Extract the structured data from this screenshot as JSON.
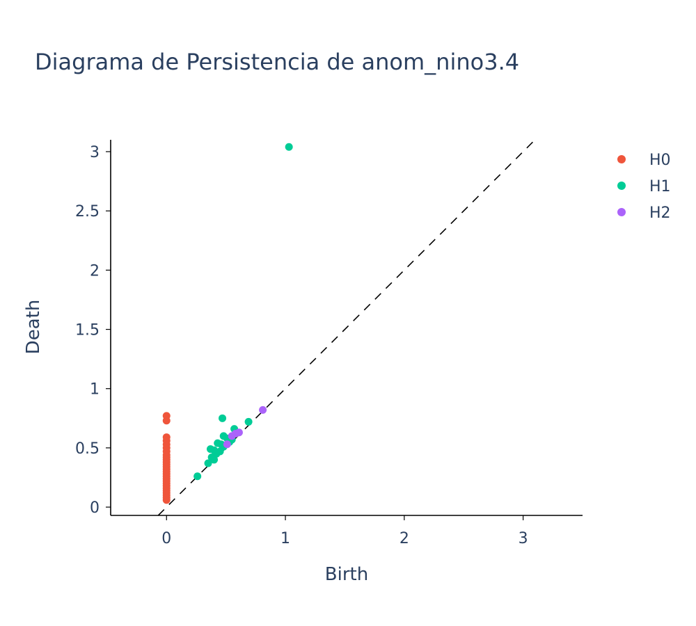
{
  "chart_data": {
    "type": "scatter",
    "title": "Diagrama de Persistencia de anom_nino3.4",
    "xlabel": "Birth",
    "ylabel": "Death",
    "xlim": [
      -0.47,
      3.5
    ],
    "ylim": [
      -0.07,
      3.1
    ],
    "x_ticks": [
      0,
      1,
      2,
      3
    ],
    "y_ticks": [
      0,
      0.5,
      1,
      1.5,
      2,
      2.5,
      3
    ],
    "grid": false,
    "legend_position": "top-right",
    "diagonal": {
      "style": "dashed",
      "color": "#000000"
    },
    "series": [
      {
        "name": "H0",
        "color": "#EF553B",
        "points": [
          [
            0,
            0.06
          ],
          [
            0,
            0.08
          ],
          [
            0,
            0.1
          ],
          [
            0,
            0.12
          ],
          [
            0,
            0.14
          ],
          [
            0,
            0.16
          ],
          [
            0,
            0.18
          ],
          [
            0,
            0.2
          ],
          [
            0,
            0.22
          ],
          [
            0,
            0.24
          ],
          [
            0,
            0.26
          ],
          [
            0,
            0.28
          ],
          [
            0,
            0.3
          ],
          [
            0,
            0.32
          ],
          [
            0,
            0.34
          ],
          [
            0,
            0.36
          ],
          [
            0,
            0.38
          ],
          [
            0,
            0.4
          ],
          [
            0,
            0.42
          ],
          [
            0,
            0.44
          ],
          [
            0,
            0.47
          ],
          [
            0,
            0.5
          ],
          [
            0,
            0.53
          ],
          [
            0,
            0.56
          ],
          [
            0,
            0.59
          ],
          [
            0,
            0.73
          ],
          [
            0,
            0.77
          ]
        ]
      },
      {
        "name": "H1",
        "color": "#00CC96",
        "points": [
          [
            1.03,
            3.04
          ],
          [
            0.47,
            0.75
          ],
          [
            0.69,
            0.72
          ],
          [
            0.57,
            0.66
          ],
          [
            0.48,
            0.6
          ],
          [
            0.51,
            0.58
          ],
          [
            0.55,
            0.57
          ],
          [
            0.43,
            0.54
          ],
          [
            0.46,
            0.53
          ],
          [
            0.53,
            0.55
          ],
          [
            0.37,
            0.49
          ],
          [
            0.4,
            0.48
          ],
          [
            0.42,
            0.45
          ],
          [
            0.45,
            0.47
          ],
          [
            0.48,
            0.51
          ],
          [
            0.38,
            0.42
          ],
          [
            0.35,
            0.37
          ],
          [
            0.4,
            0.4
          ],
          [
            0.26,
            0.26
          ]
        ]
      },
      {
        "name": "H2",
        "color": "#AB63FA",
        "points": [
          [
            0.81,
            0.82
          ],
          [
            0.61,
            0.63
          ],
          [
            0.58,
            0.62
          ],
          [
            0.55,
            0.6
          ],
          [
            0.51,
            0.53
          ]
        ]
      }
    ]
  }
}
